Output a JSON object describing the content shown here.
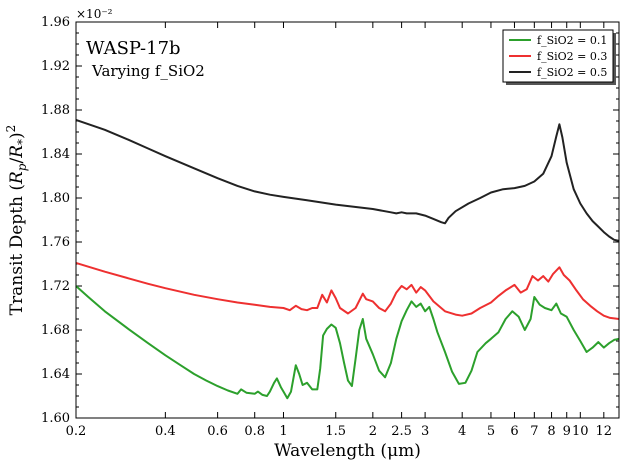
{
  "chart_data": {
    "type": "line",
    "title": "WASP-17b",
    "subtitle": "Varying f_SiO2",
    "xlabel": "Wavelength (μm)",
    "ylabel": "Transit Depth (R_p/R_*)^2",
    "y_offset_label": "×10⁻²",
    "x_scale": "log",
    "xlim": [
      0.2,
      13.5
    ],
    "ylim": [
      1.6,
      1.96
    ],
    "x_ticks": [
      0.2,
      0.4,
      0.6,
      0.8,
      1,
      1.5,
      2,
      2.5,
      3,
      4,
      5,
      6,
      7,
      8,
      9,
      10,
      12
    ],
    "x_tick_labels": [
      "0.2",
      "0.4",
      "0.6",
      "0.8",
      "1",
      "1.5",
      "2",
      "2.5",
      "3",
      "4",
      "5",
      "6",
      "7",
      "8",
      "9",
      "10",
      "12"
    ],
    "y_ticks": [
      1.6,
      1.64,
      1.68,
      1.72,
      1.76,
      1.8,
      1.84,
      1.88,
      1.92,
      1.96
    ],
    "y_tick_labels": [
      "1.60",
      "1.64",
      "1.68",
      "1.72",
      "1.76",
      "1.80",
      "1.84",
      "1.88",
      "1.92",
      "1.96"
    ],
    "legend_position": "top-right",
    "grid": false,
    "series": [
      {
        "name": "f_SiO2 = 0.1",
        "color": "#2ca02c",
        "points": [
          [
            0.2,
            1.72
          ],
          [
            0.22,
            1.71
          ],
          [
            0.25,
            1.697
          ],
          [
            0.3,
            1.681
          ],
          [
            0.35,
            1.668
          ],
          [
            0.4,
            1.657
          ],
          [
            0.45,
            1.648
          ],
          [
            0.5,
            1.64
          ],
          [
            0.55,
            1.634
          ],
          [
            0.6,
            1.629
          ],
          [
            0.65,
            1.625
          ],
          [
            0.7,
            1.622
          ],
          [
            0.72,
            1.626
          ],
          [
            0.75,
            1.623
          ],
          [
            0.8,
            1.622
          ],
          [
            0.82,
            1.624
          ],
          [
            0.85,
            1.621
          ],
          [
            0.88,
            1.62
          ],
          [
            0.9,
            1.624
          ],
          [
            0.93,
            1.632
          ],
          [
            0.95,
            1.636
          ],
          [
            0.98,
            1.628
          ],
          [
            1.0,
            1.624
          ],
          [
            1.03,
            1.618
          ],
          [
            1.06,
            1.624
          ],
          [
            1.1,
            1.648
          ],
          [
            1.13,
            1.64
          ],
          [
            1.16,
            1.63
          ],
          [
            1.2,
            1.632
          ],
          [
            1.25,
            1.626
          ],
          [
            1.3,
            1.626
          ],
          [
            1.33,
            1.645
          ],
          [
            1.36,
            1.675
          ],
          [
            1.4,
            1.681
          ],
          [
            1.45,
            1.685
          ],
          [
            1.5,
            1.682
          ],
          [
            1.55,
            1.668
          ],
          [
            1.6,
            1.65
          ],
          [
            1.65,
            1.634
          ],
          [
            1.7,
            1.629
          ],
          [
            1.75,
            1.654
          ],
          [
            1.8,
            1.68
          ],
          [
            1.85,
            1.69
          ],
          [
            1.9,
            1.672
          ],
          [
            2.0,
            1.658
          ],
          [
            2.1,
            1.643
          ],
          [
            2.2,
            1.637
          ],
          [
            2.3,
            1.65
          ],
          [
            2.4,
            1.672
          ],
          [
            2.5,
            1.688
          ],
          [
            2.6,
            1.698
          ],
          [
            2.7,
            1.706
          ],
          [
            2.8,
            1.701
          ],
          [
            2.9,
            1.704
          ],
          [
            3.0,
            1.697
          ],
          [
            3.1,
            1.701
          ],
          [
            3.2,
            1.69
          ],
          [
            3.3,
            1.678
          ],
          [
            3.5,
            1.66
          ],
          [
            3.7,
            1.642
          ],
          [
            3.9,
            1.631
          ],
          [
            4.1,
            1.632
          ],
          [
            4.3,
            1.643
          ],
          [
            4.5,
            1.66
          ],
          [
            4.8,
            1.668
          ],
          [
            5.0,
            1.672
          ],
          [
            5.3,
            1.678
          ],
          [
            5.6,
            1.69
          ],
          [
            5.9,
            1.697
          ],
          [
            6.2,
            1.692
          ],
          [
            6.5,
            1.68
          ],
          [
            6.8,
            1.69
          ],
          [
            7.0,
            1.71
          ],
          [
            7.3,
            1.703
          ],
          [
            7.6,
            1.7
          ],
          [
            8.0,
            1.698
          ],
          [
            8.3,
            1.704
          ],
          [
            8.6,
            1.695
          ],
          [
            9.0,
            1.692
          ],
          [
            9.5,
            1.68
          ],
          [
            10.0,
            1.67
          ],
          [
            10.5,
            1.66
          ],
          [
            11.0,
            1.664
          ],
          [
            11.5,
            1.669
          ],
          [
            12.0,
            1.664
          ],
          [
            12.5,
            1.668
          ],
          [
            13.0,
            1.671
          ],
          [
            13.5,
            1.672
          ]
        ]
      },
      {
        "name": "f_SiO2 = 0.3",
        "color": "#ee3030",
        "points": [
          [
            0.2,
            1.741
          ],
          [
            0.25,
            1.733
          ],
          [
            0.3,
            1.727
          ],
          [
            0.35,
            1.722
          ],
          [
            0.4,
            1.718
          ],
          [
            0.5,
            1.712
          ],
          [
            0.6,
            1.708
          ],
          [
            0.7,
            1.705
          ],
          [
            0.8,
            1.703
          ],
          [
            0.9,
            1.701
          ],
          [
            1.0,
            1.7
          ],
          [
            1.05,
            1.698
          ],
          [
            1.1,
            1.702
          ],
          [
            1.15,
            1.699
          ],
          [
            1.2,
            1.698
          ],
          [
            1.25,
            1.7
          ],
          [
            1.3,
            1.7
          ],
          [
            1.35,
            1.712
          ],
          [
            1.4,
            1.705
          ],
          [
            1.45,
            1.716
          ],
          [
            1.5,
            1.709
          ],
          [
            1.55,
            1.7
          ],
          [
            1.65,
            1.695
          ],
          [
            1.75,
            1.7
          ],
          [
            1.85,
            1.713
          ],
          [
            1.9,
            1.708
          ],
          [
            2.0,
            1.706
          ],
          [
            2.1,
            1.7
          ],
          [
            2.2,
            1.697
          ],
          [
            2.3,
            1.704
          ],
          [
            2.4,
            1.714
          ],
          [
            2.5,
            1.72
          ],
          [
            2.6,
            1.717
          ],
          [
            2.7,
            1.721
          ],
          [
            2.8,
            1.714
          ],
          [
            2.9,
            1.719
          ],
          [
            3.0,
            1.716
          ],
          [
            3.2,
            1.706
          ],
          [
            3.5,
            1.697
          ],
          [
            3.8,
            1.694
          ],
          [
            4.0,
            1.693
          ],
          [
            4.3,
            1.695
          ],
          [
            4.6,
            1.7
          ],
          [
            5.0,
            1.705
          ],
          [
            5.3,
            1.711
          ],
          [
            5.6,
            1.716
          ],
          [
            6.0,
            1.721
          ],
          [
            6.3,
            1.714
          ],
          [
            6.6,
            1.717
          ],
          [
            6.9,
            1.729
          ],
          [
            7.2,
            1.725
          ],
          [
            7.5,
            1.729
          ],
          [
            7.8,
            1.724
          ],
          [
            8.1,
            1.731
          ],
          [
            8.5,
            1.737
          ],
          [
            8.8,
            1.73
          ],
          [
            9.2,
            1.725
          ],
          [
            9.7,
            1.716
          ],
          [
            10.2,
            1.708
          ],
          [
            10.8,
            1.702
          ],
          [
            11.4,
            1.697
          ],
          [
            12.0,
            1.693
          ],
          [
            12.6,
            1.691
          ],
          [
            13.5,
            1.69
          ]
        ]
      },
      {
        "name": "f_SiO2 = 0.5",
        "color": "#222222",
        "points": [
          [
            0.2,
            1.871
          ],
          [
            0.25,
            1.862
          ],
          [
            0.3,
            1.853
          ],
          [
            0.35,
            1.845
          ],
          [
            0.4,
            1.838
          ],
          [
            0.5,
            1.827
          ],
          [
            0.6,
            1.818
          ],
          [
            0.7,
            1.811
          ],
          [
            0.8,
            1.806
          ],
          [
            0.9,
            1.803
          ],
          [
            1.0,
            1.801
          ],
          [
            1.2,
            1.798
          ],
          [
            1.5,
            1.794
          ],
          [
            2.0,
            1.79
          ],
          [
            2.3,
            1.787
          ],
          [
            2.4,
            1.786
          ],
          [
            2.5,
            1.787
          ],
          [
            2.6,
            1.786
          ],
          [
            2.8,
            1.786
          ],
          [
            3.0,
            1.784
          ],
          [
            3.2,
            1.781
          ],
          [
            3.4,
            1.778
          ],
          [
            3.5,
            1.777
          ],
          [
            3.6,
            1.782
          ],
          [
            3.8,
            1.788
          ],
          [
            4.2,
            1.795
          ],
          [
            4.6,
            1.8
          ],
          [
            5.0,
            1.805
          ],
          [
            5.5,
            1.808
          ],
          [
            6.0,
            1.809
          ],
          [
            6.5,
            1.811
          ],
          [
            7.0,
            1.815
          ],
          [
            7.5,
            1.822
          ],
          [
            8.0,
            1.838
          ],
          [
            8.3,
            1.856
          ],
          [
            8.5,
            1.867
          ],
          [
            8.7,
            1.855
          ],
          [
            9.0,
            1.832
          ],
          [
            9.5,
            1.808
          ],
          [
            10.0,
            1.795
          ],
          [
            10.5,
            1.786
          ],
          [
            11.0,
            1.779
          ],
          [
            11.5,
            1.774
          ],
          [
            12.0,
            1.769
          ],
          [
            12.5,
            1.765
          ],
          [
            13.0,
            1.762
          ],
          [
            13.5,
            1.761
          ]
        ]
      }
    ]
  }
}
